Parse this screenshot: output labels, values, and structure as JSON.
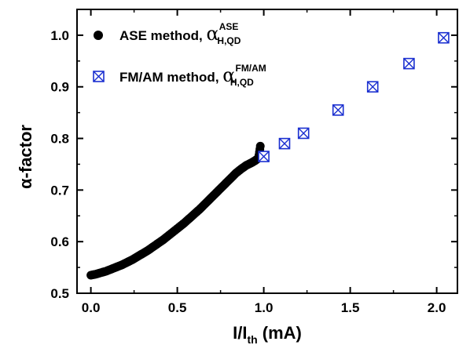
{
  "chart_data": {
    "type": "scatter",
    "xlabel": {
      "main": "I/I",
      "sub": "th",
      "unit": " (mA)"
    },
    "ylabel": "α-factor",
    "xlim": [
      -0.08,
      2.12
    ],
    "ylim": [
      0.5,
      1.05
    ],
    "x_ticks": [
      "0.0",
      "0.5",
      "1.0",
      "1.5",
      "2.0"
    ],
    "x_tick_values": [
      0.0,
      0.5,
      1.0,
      1.5,
      2.0
    ],
    "y_ticks": [
      "0.5",
      "0.6",
      "0.7",
      "0.8",
      "0.9",
      "1.0"
    ],
    "y_tick_values": [
      0.5,
      0.6,
      0.7,
      0.8,
      0.9,
      1.0
    ],
    "grid": false,
    "legend_position": "top-left",
    "series": [
      {
        "name": "ASE method",
        "legend_label": "ASE method, ",
        "symbol_main": "α",
        "symbol_sup": "ASE",
        "symbol_sub": "H,QD",
        "marker": "filled-circle",
        "color": "#000000",
        "x": [
          0.0,
          0.03,
          0.06,
          0.09,
          0.12,
          0.15,
          0.18,
          0.21,
          0.24,
          0.27,
          0.3,
          0.33,
          0.36,
          0.39,
          0.42,
          0.45,
          0.48,
          0.51,
          0.54,
          0.57,
          0.6,
          0.63,
          0.66,
          0.69,
          0.72,
          0.75,
          0.78,
          0.81,
          0.84,
          0.87,
          0.9,
          0.93,
          0.95,
          0.97,
          0.98
        ],
        "y": [
          0.535,
          0.537,
          0.54,
          0.543,
          0.547,
          0.551,
          0.555,
          0.56,
          0.565,
          0.571,
          0.577,
          0.583,
          0.59,
          0.597,
          0.604,
          0.612,
          0.62,
          0.628,
          0.636,
          0.645,
          0.654,
          0.663,
          0.673,
          0.683,
          0.693,
          0.703,
          0.713,
          0.723,
          0.733,
          0.741,
          0.748,
          0.753,
          0.757,
          0.762,
          0.785
        ]
      },
      {
        "name": "FM/AM method",
        "legend_label": "FM/AM method, ",
        "symbol_main": "α",
        "symbol_sup": "FM/AM",
        "symbol_sub": "H,QD",
        "marker": "boxed-x",
        "color": "#1a2fd0",
        "x": [
          1.0,
          1.12,
          1.23,
          1.43,
          1.63,
          1.84,
          2.04
        ],
        "y": [
          0.765,
          0.79,
          0.81,
          0.855,
          0.9,
          0.945,
          0.995
        ]
      }
    ]
  }
}
